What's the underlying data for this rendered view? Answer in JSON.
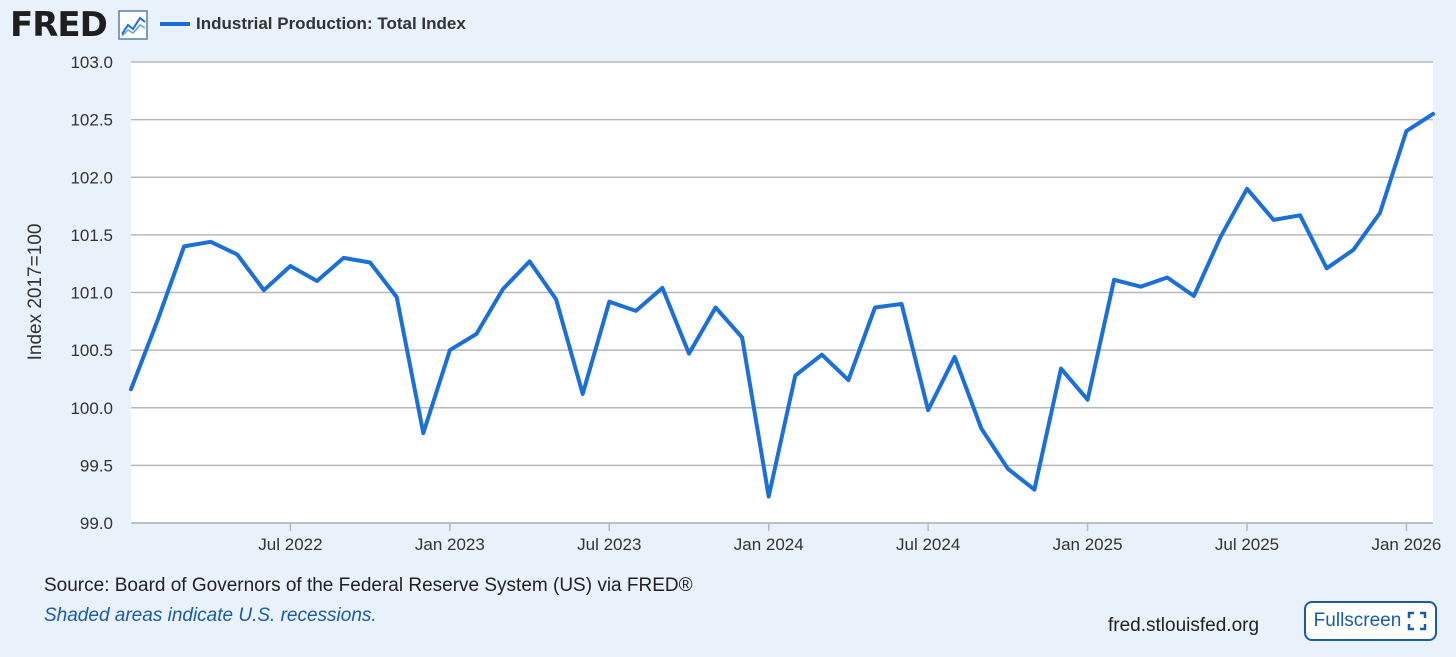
{
  "header": {
    "logo_text": "FRED",
    "logo_icon": "line-graph-icon",
    "legend_label": "Industrial Production: Total Index"
  },
  "colors": {
    "series": "#1a6fd9",
    "background": "#e9f1fa",
    "plot_background": "#ffffff",
    "grid": "#b8b8b8"
  },
  "chart_data": {
    "type": "line",
    "ylabel": "Index 2017=100",
    "ylim": [
      99.0,
      103.0
    ],
    "yticks": [
      "99.0",
      "99.5",
      "100.0",
      "100.5",
      "101.0",
      "101.5",
      "102.0",
      "102.5",
      "103.0"
    ],
    "xlim": [
      "2022-01",
      "2026-02"
    ],
    "xticks": [
      {
        "date": "2022-07",
        "label": "Jul 2022"
      },
      {
        "date": "2023-01",
        "label": "Jan 2023"
      },
      {
        "date": "2023-07",
        "label": "Jul 2023"
      },
      {
        "date": "2024-01",
        "label": "Jan 2024"
      },
      {
        "date": "2024-07",
        "label": "Jul 2024"
      },
      {
        "date": "2025-01",
        "label": "Jan 2025"
      },
      {
        "date": "2025-07",
        "label": "Jul 2025"
      },
      {
        "date": "2026-01",
        "label": "Jan 2026"
      }
    ],
    "grid": "horizontal",
    "series": [
      {
        "name": "Industrial Production: Total Index",
        "x": [
          "2022-01",
          "2022-02",
          "2022-03",
          "2022-04",
          "2022-05",
          "2022-06",
          "2022-07",
          "2022-08",
          "2022-09",
          "2022-10",
          "2022-11",
          "2022-12",
          "2023-01",
          "2023-02",
          "2023-03",
          "2023-04",
          "2023-05",
          "2023-06",
          "2023-07",
          "2023-08",
          "2023-09",
          "2023-10",
          "2023-11",
          "2023-12",
          "2024-01",
          "2024-02",
          "2024-03",
          "2024-04",
          "2024-05",
          "2024-06",
          "2024-07",
          "2024-08",
          "2024-09",
          "2024-10",
          "2024-11",
          "2024-12",
          "2025-01",
          "2025-02",
          "2025-03",
          "2025-04",
          "2025-05",
          "2025-06",
          "2025-07",
          "2025-08",
          "2025-09",
          "2025-10",
          "2025-11",
          "2025-12",
          "2026-01",
          "2026-02"
        ],
        "values": [
          100.16,
          100.76,
          101.4,
          101.44,
          101.33,
          101.02,
          101.23,
          101.1,
          101.3,
          101.26,
          100.96,
          99.78,
          100.5,
          100.64,
          101.03,
          101.27,
          100.94,
          100.12,
          100.92,
          100.84,
          101.04,
          100.47,
          100.87,
          100.61,
          99.23,
          100.28,
          100.46,
          100.24,
          100.87,
          100.9,
          99.98,
          100.44,
          99.82,
          99.47,
          99.29,
          100.34,
          100.07,
          101.11,
          101.05,
          101.13,
          100.97,
          101.48,
          101.9,
          101.63,
          101.67,
          101.21,
          101.37,
          101.69,
          102.4,
          102.55
        ]
      }
    ]
  },
  "footer": {
    "source": "Source: Board of Governors of the Federal Reserve System (US) via FRED®",
    "recession_note": "Shaded areas indicate U.S. recessions.",
    "site": "fred.stlouisfed.org",
    "fullscreen_label": "Fullscreen"
  }
}
